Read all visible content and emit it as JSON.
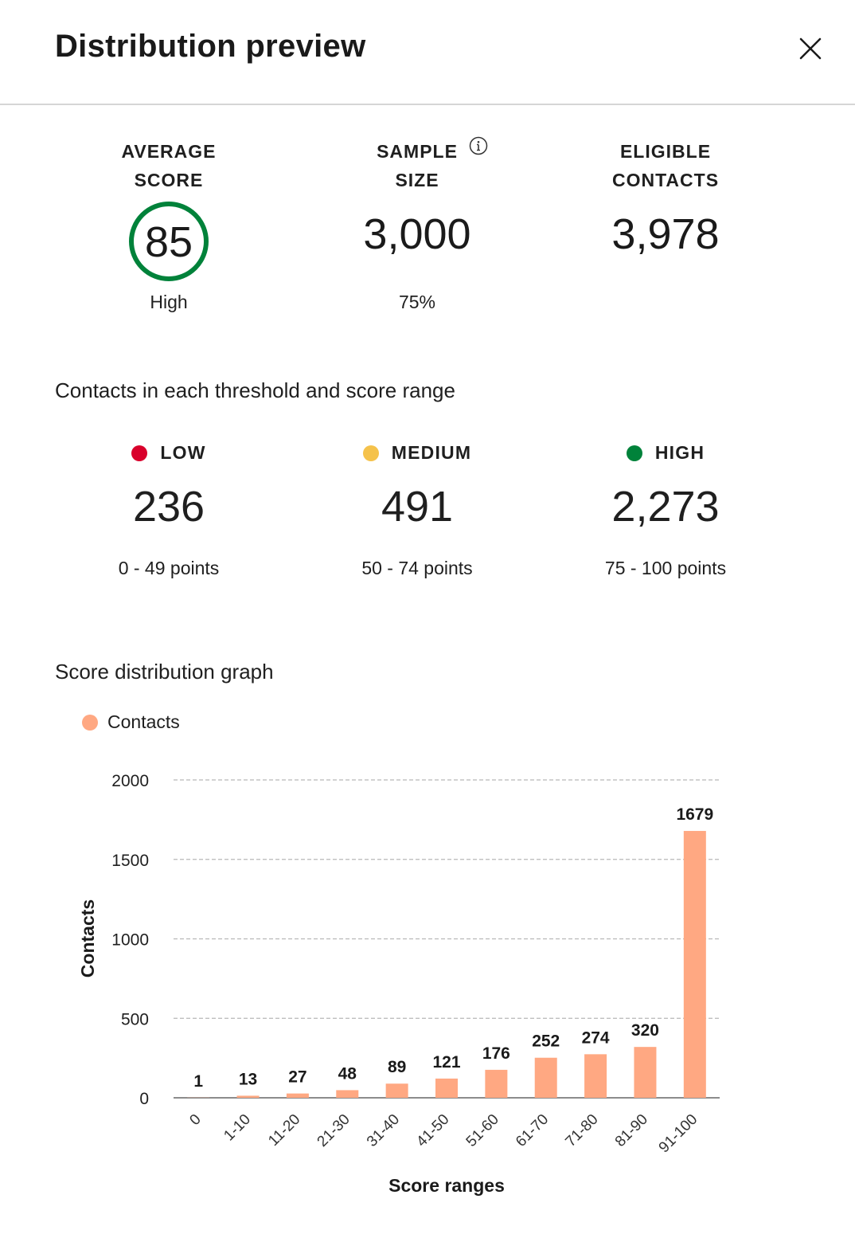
{
  "header": {
    "title": "Distribution preview",
    "close_icon": "close-icon"
  },
  "stats": {
    "average_score": {
      "label_line1": "AVERAGE",
      "label_line2": "SCORE",
      "value": "85",
      "sub": "High",
      "ring_color": "#00823a"
    },
    "sample_size": {
      "label_line1": "SAMPLE",
      "label_line2": "SIZE",
      "value": "3,000",
      "sub": "75%",
      "info_icon": "info-icon"
    },
    "eligible_contacts": {
      "label_line1": "ELIGIBLE",
      "label_line2": "CONTACTS",
      "value": "3,978"
    }
  },
  "thresholds": {
    "title": "Contacts in each threshold and score range",
    "items": [
      {
        "label": "LOW",
        "value": "236",
        "range": "0 - 49 points",
        "color": "#d9002b"
      },
      {
        "label": "MEDIUM",
        "value": "491",
        "range": "50 - 74 points",
        "color": "#f5c24b"
      },
      {
        "label": "HIGH",
        "value": "2,273",
        "range": "75 - 100 points",
        "color": "#00823a"
      }
    ]
  },
  "graph": {
    "title": "Score distribution graph",
    "legend_label": "Contacts"
  },
  "chart_data": {
    "type": "bar",
    "categories": [
      "0",
      "1-10",
      "11-20",
      "21-30",
      "31-40",
      "41-50",
      "51-60",
      "61-70",
      "71-80",
      "81-90",
      "91-100"
    ],
    "series": [
      {
        "name": "Contacts",
        "values": [
          1,
          13,
          27,
          48,
          89,
          121,
          176,
          252,
          274,
          320,
          1679
        ],
        "color": "#ffa882"
      }
    ],
    "xlabel": "Score ranges",
    "ylabel": "Contacts",
    "ylim": [
      0,
      2000
    ],
    "yticks": [
      0,
      500,
      1000,
      1500,
      2000
    ],
    "grid": true,
    "legend": "top-left",
    "data_labels": true
  }
}
